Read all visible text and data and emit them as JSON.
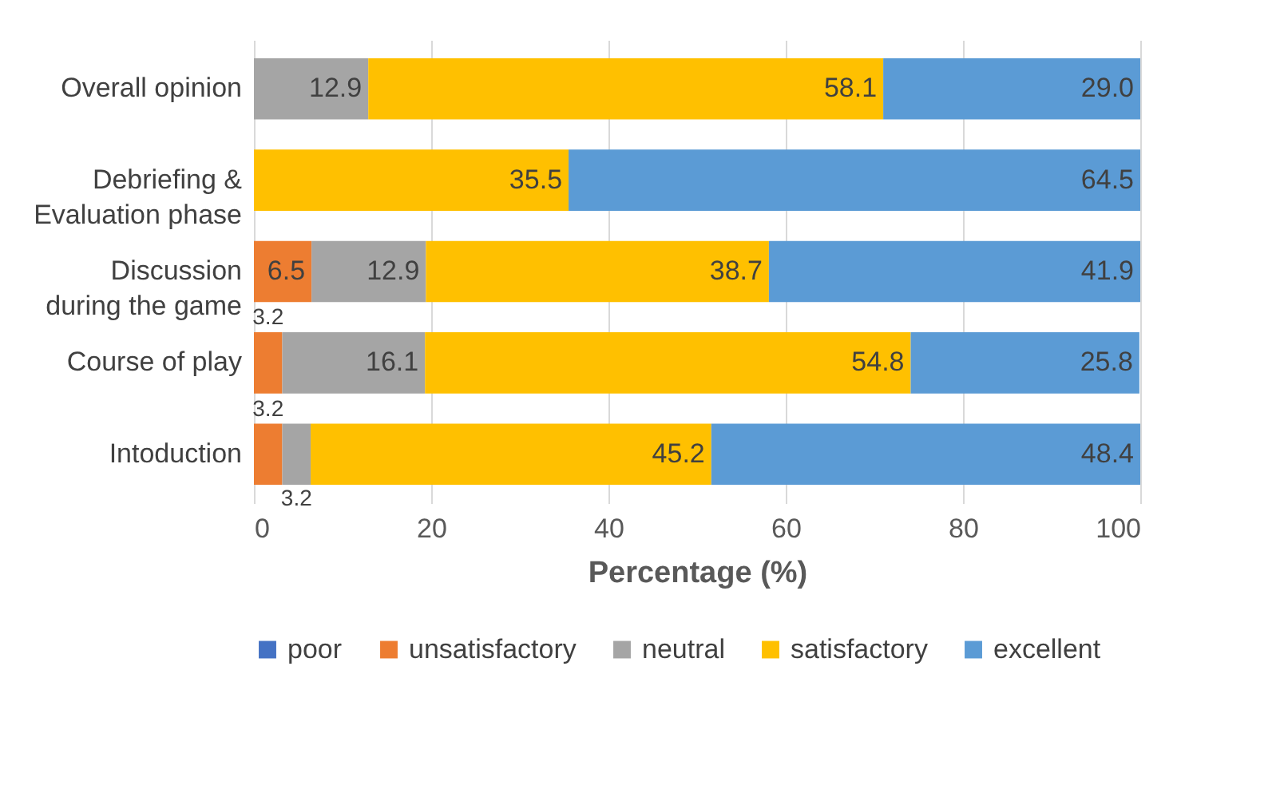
{
  "chart_data": {
    "type": "bar",
    "orientation": "horizontal",
    "stacked": true,
    "categories": [
      "Overall opinion",
      "Debriefing &\nEvaluation phase",
      "Discussion\nduring the game",
      "Course of play",
      "Intoduction"
    ],
    "series": [
      {
        "name": "poor",
        "color": "#4472c4",
        "values": [
          0,
          0,
          0,
          0,
          0
        ],
        "value_labels": [
          null,
          null,
          null,
          null,
          null
        ]
      },
      {
        "name": "unsatisfactory",
        "color": "#ed7d31",
        "values": [
          0,
          0,
          6.5,
          3.2,
          3.2
        ],
        "value_labels": [
          null,
          null,
          "6.5",
          "3.2",
          "3.2"
        ]
      },
      {
        "name": "neutral",
        "color": "#a5a5a5",
        "values": [
          12.9,
          0,
          12.9,
          16.1,
          3.2
        ],
        "value_labels": [
          "12.9",
          null,
          "12.9",
          "16.1",
          "3.2"
        ]
      },
      {
        "name": "satisfactory",
        "color": "#ffc000",
        "values": [
          58.1,
          35.5,
          38.7,
          54.8,
          45.2
        ],
        "value_labels": [
          "58.1",
          "35.5",
          "38.7",
          "54.8",
          "45.2"
        ]
      },
      {
        "name": "excellent",
        "color": "#5b9bd5",
        "values": [
          29.0,
          64.5,
          41.9,
          25.8,
          48.4
        ],
        "value_labels": [
          "29.0",
          "64.5",
          "41.9",
          "25.8",
          "48.4"
        ]
      }
    ],
    "xlim": [
      0,
      100
    ],
    "xticks": [
      0,
      20,
      40,
      60,
      80,
      100
    ],
    "xlabel": "Percentage (%)",
    "grid": "x",
    "legend": "bottom"
  }
}
